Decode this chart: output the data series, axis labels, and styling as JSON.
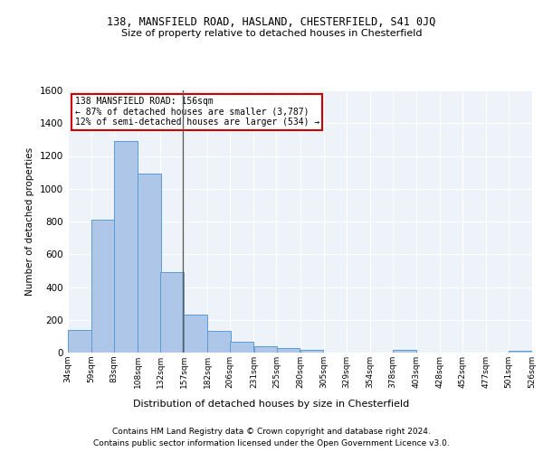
{
  "title1": "138, MANSFIELD ROAD, HASLAND, CHESTERFIELD, S41 0JQ",
  "title2": "Size of property relative to detached houses in Chesterfield",
  "xlabel": "Distribution of detached houses by size in Chesterfield",
  "ylabel": "Number of detached properties",
  "footnote1": "Contains HM Land Registry data © Crown copyright and database right 2024.",
  "footnote2": "Contains public sector information licensed under the Open Government Licence v3.0.",
  "annotation_line1": "138 MANSFIELD ROAD: 156sqm",
  "annotation_line2": "← 87% of detached houses are smaller (3,787)",
  "annotation_line3": "12% of semi-detached houses are larger (534) →",
  "property_size": 156,
  "bar_edges": [
    34,
    59,
    83,
    108,
    132,
    157,
    182,
    206,
    231,
    255,
    280,
    305,
    329,
    354,
    378,
    403,
    428,
    452,
    477,
    501,
    526
  ],
  "bar_values": [
    140,
    810,
    1290,
    1090,
    490,
    230,
    130,
    65,
    38,
    26,
    14,
    0,
    0,
    0,
    15,
    0,
    0,
    0,
    0,
    12
  ],
  "bar_color": "#aec6e8",
  "bar_edge_color": "#5b9bd5",
  "vline_color": "#5b5b5b",
  "annotation_box_color": "#cc0000",
  "bg_color": "#eef2f9",
  "ylim": [
    0,
    1600
  ],
  "yticks": [
    0,
    200,
    400,
    600,
    800,
    1000,
    1200,
    1400,
    1600
  ],
  "tick_labels": [
    "34sqm",
    "59sqm",
    "83sqm",
    "108sqm",
    "132sqm",
    "157sqm",
    "182sqm",
    "206sqm",
    "231sqm",
    "255sqm",
    "280sqm",
    "305sqm",
    "329sqm",
    "354sqm",
    "378sqm",
    "403sqm",
    "428sqm",
    "452sqm",
    "477sqm",
    "501sqm",
    "526sqm"
  ]
}
